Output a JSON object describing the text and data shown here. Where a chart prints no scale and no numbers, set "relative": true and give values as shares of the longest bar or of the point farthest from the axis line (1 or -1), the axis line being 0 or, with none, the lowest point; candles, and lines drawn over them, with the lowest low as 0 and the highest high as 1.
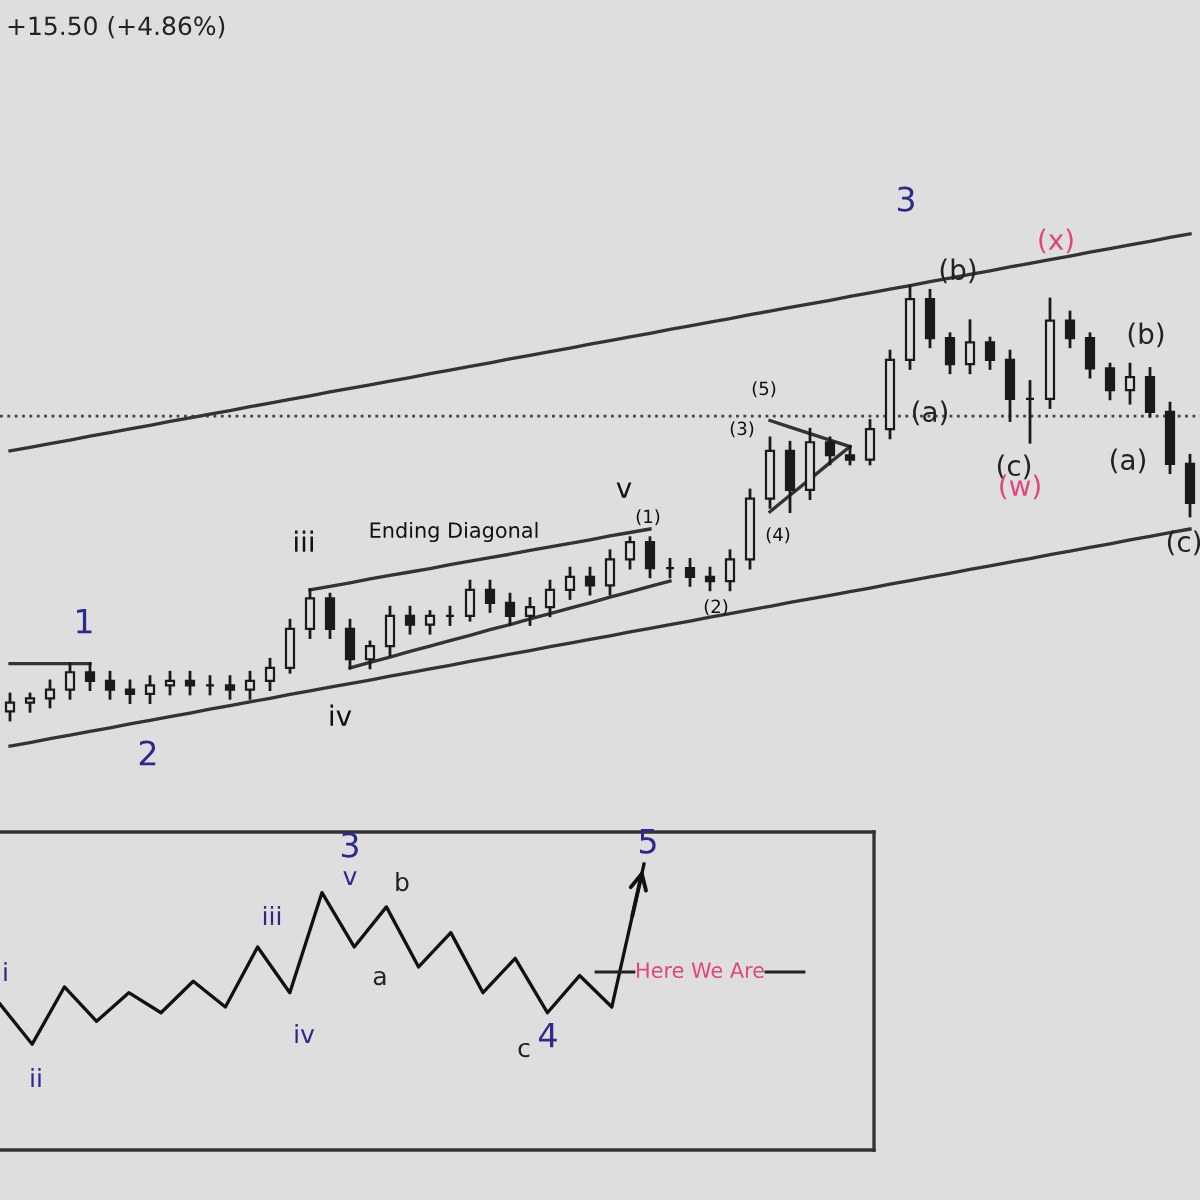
{
  "chart_data": [
    {
      "type": "candlestick",
      "relative": true,
      "tick_labels": false,
      "categories": [
        null,
        null,
        null,
        null,
        null,
        null,
        null,
        null,
        null,
        null,
        null,
        null,
        null,
        null,
        null,
        null,
        null,
        null,
        null,
        null,
        null,
        null,
        null,
        null,
        null,
        null,
        null,
        null,
        null,
        null,
        null,
        null,
        null,
        null,
        null,
        null,
        null,
        null,
        null,
        null,
        null,
        null,
        null,
        null,
        null,
        null,
        null,
        null,
        null,
        null,
        null,
        null,
        null,
        null,
        null,
        null,
        null,
        null,
        null,
        null
      ],
      "ohlc": [
        [
          0.02,
          0.06,
          0,
          0.04
        ],
        [
          0.04,
          0.06,
          0.02,
          0.05
        ],
        [
          0.05,
          0.09,
          0.03,
          0.07
        ],
        [
          0.07,
          0.13,
          0.05,
          0.11
        ],
        [
          0.11,
          0.13,
          0.07,
          0.09
        ],
        [
          0.09,
          0.11,
          0.05,
          0.07
        ],
        [
          0.07,
          0.09,
          0.04,
          0.06
        ],
        [
          0.06,
          0.1,
          0.04,
          0.08
        ],
        [
          0.08,
          0.11,
          0.06,
          0.09
        ],
        [
          0.09,
          0.11,
          0.06,
          0.08
        ],
        [
          0.08,
          0.1,
          0.06,
          0.08
        ],
        [
          0.08,
          0.1,
          0.05,
          0.07
        ],
        [
          0.07,
          0.11,
          0.05,
          0.09
        ],
        [
          0.09,
          0.14,
          0.07,
          0.12
        ],
        [
          0.12,
          0.23,
          0.11,
          0.21
        ],
        [
          0.21,
          0.3,
          0.19,
          0.28
        ],
        [
          0.28,
          0.29,
          0.19,
          0.21
        ],
        [
          0.21,
          0.23,
          0.12,
          0.14
        ],
        [
          0.14,
          0.18,
          0.12,
          0.17
        ],
        [
          0.17,
          0.26,
          0.15,
          0.24
        ],
        [
          0.24,
          0.26,
          0.2,
          0.22
        ],
        [
          0.22,
          0.25,
          0.2,
          0.24
        ],
        [
          0.24,
          0.26,
          0.22,
          0.24
        ],
        [
          0.24,
          0.32,
          0.23,
          0.3
        ],
        [
          0.3,
          0.32,
          0.25,
          0.27
        ],
        [
          0.27,
          0.29,
          0.22,
          0.24
        ],
        [
          0.24,
          0.28,
          0.22,
          0.26
        ],
        [
          0.26,
          0.32,
          0.24,
          0.3
        ],
        [
          0.3,
          0.35,
          0.28,
          0.33
        ],
        [
          0.33,
          0.35,
          0.29,
          0.31
        ],
        [
          0.31,
          0.39,
          0.29,
          0.37
        ],
        [
          0.37,
          0.42,
          0.35,
          0.41
        ],
        [
          0.41,
          0.42,
          0.33,
          0.35
        ],
        [
          0.35,
          0.37,
          0.33,
          0.35
        ],
        [
          0.35,
          0.37,
          0.31,
          0.33
        ],
        [
          0.33,
          0.35,
          0.3,
          0.32
        ],
        [
          0.32,
          0.39,
          0.3,
          0.37
        ],
        [
          0.37,
          0.53,
          0.35,
          0.51
        ],
        [
          0.51,
          0.65,
          0.49,
          0.62
        ],
        [
          0.62,
          0.64,
          0.48,
          0.53
        ],
        [
          0.53,
          0.67,
          0.51,
          0.64
        ],
        [
          0.64,
          0.65,
          0.59,
          0.61
        ],
        [
          0.61,
          0.63,
          0.59,
          0.6
        ],
        [
          0.6,
          0.69,
          0.59,
          0.67
        ],
        [
          0.67,
          0.85,
          0.65,
          0.83
        ],
        [
          0.83,
          1,
          0.81,
          0.97
        ],
        [
          0.97,
          0.99,
          0.86,
          0.88
        ],
        [
          0.88,
          0.89,
          0.8,
          0.82
        ],
        [
          0.82,
          0.92,
          0.8,
          0.87
        ],
        [
          0.87,
          0.88,
          0.81,
          0.83
        ],
        [
          0.83,
          0.85,
          0.69,
          0.74
        ],
        [
          0.74,
          0.78,
          0.64,
          0.74
        ],
        [
          0.74,
          0.97,
          0.72,
          0.92
        ],
        [
          0.92,
          0.94,
          0.86,
          0.88
        ],
        [
          0.88,
          0.89,
          0.79,
          0.81
        ],
        [
          0.81,
          0.82,
          0.74,
          0.76
        ],
        [
          0.76,
          0.82,
          0.73,
          0.79
        ],
        [
          0.79,
          0.81,
          0.7,
          0.71
        ],
        [
          0.71,
          0.73,
          0.57,
          0.59
        ],
        [
          0.59,
          0.61,
          0.47,
          0.5
        ]
      ],
      "color": "#1a1a1a",
      "series": [
        {
          "type": "line",
          "color": "#333333",
          "values": [
            0.62,
            0.628,
            0.637,
            0.645,
            0.654,
            0.662,
            0.671,
            0.679,
            0.688,
            0.696,
            0.705,
            0.713,
            0.722,
            0.73,
            0.739,
            0.747,
            0.756,
            0.764,
            0.772,
            0.781,
            0.789,
            0.798,
            0.806,
            0.815,
            0.823,
            0.832,
            0.84,
            0.849,
            0.857,
            0.866,
            0.874,
            0.883,
            0.891,
            0.9,
            0.908,
            0.917,
            0.925,
            0.934,
            0.942,
            0.951,
            0.959,
            0.967,
            0.976,
            0.984,
            0.993,
            1.001,
            1.01,
            1.018,
            1.027,
            1.035,
            1.044,
            1.052,
            1.061,
            1.069,
            1.078,
            1.086,
            1.095,
            1.103,
            1.112,
            1.12
          ]
        },
        {
          "type": "line",
          "color": "#333333",
          "values": [
            -0.06,
            -0.052,
            -0.043,
            -0.035,
            -0.026,
            -0.018,
            -0.009,
            -0.001,
            0.008,
            0.016,
            0.025,
            0.033,
            0.042,
            0.05,
            0.059,
            0.067,
            0.076,
            0.084,
            0.092,
            0.101,
            0.109,
            0.118,
            0.126,
            0.135,
            0.143,
            0.152,
            0.16,
            0.169,
            0.177,
            0.186,
            0.194,
            0.203,
            0.211,
            0.22,
            0.228,
            0.237,
            0.245,
            0.254,
            0.262,
            0.271,
            0.279,
            0.287,
            0.296,
            0.304,
            0.313,
            0.321,
            0.33,
            0.338,
            0.347,
            0.355,
            0.364,
            0.372,
            0.381,
            0.389,
            0.398,
            0.406,
            0.415,
            0.423,
            0.432,
            0.44
          ]
        },
        {
          "type": "line",
          "color": "#333333",
          "values": [
            0.13,
            0.13,
            0.13,
            0.13,
            0.13,
            null,
            null,
            null,
            null,
            null,
            null,
            null,
            null,
            null,
            null,
            null,
            null,
            null,
            null,
            null,
            null,
            null,
            null,
            null,
            null,
            null,
            null,
            null,
            null,
            null,
            null,
            null,
            null,
            null,
            null,
            null,
            null,
            null,
            null,
            null,
            null,
            null,
            null,
            null,
            null,
            null,
            null,
            null,
            null,
            null,
            null,
            null,
            null,
            null,
            null,
            null,
            null,
            null,
            null,
            null
          ]
        },
        {
          "type": "line",
          "color": "#333333",
          "values": [
            null,
            null,
            null,
            null,
            null,
            null,
            null,
            null,
            null,
            null,
            null,
            null,
            null,
            null,
            null,
            0.3,
            0.308,
            0.316,
            0.325,
            0.333,
            0.341,
            0.349,
            0.358,
            0.366,
            0.374,
            0.382,
            0.391,
            0.399,
            0.407,
            0.415,
            0.424,
            0.432,
            0.44,
            null,
            null,
            null,
            null,
            null,
            null,
            null,
            null,
            null,
            null,
            null,
            null,
            null,
            null,
            null,
            null,
            null,
            null,
            null,
            null,
            null,
            null,
            null,
            null,
            null,
            null,
            null
          ]
        },
        {
          "type": "line",
          "color": "#333333",
          "values": [
            null,
            null,
            null,
            null,
            null,
            null,
            null,
            null,
            null,
            null,
            null,
            null,
            null,
            null,
            null,
            null,
            null,
            0.12,
            0.133,
            0.145,
            0.158,
            0.17,
            0.183,
            0.195,
            0.208,
            0.22,
            0.233,
            0.245,
            0.258,
            0.27,
            0.283,
            0.295,
            0.308,
            0.32,
            null,
            null,
            null,
            null,
            null,
            null,
            null,
            null,
            null,
            null,
            null,
            null,
            null,
            null,
            null,
            null,
            null,
            null,
            null,
            null,
            null,
            null,
            null,
            null,
            null,
            null
          ]
        },
        {
          "type": "line",
          "color": "#333333",
          "values": [
            null,
            null,
            null,
            null,
            null,
            null,
            null,
            null,
            null,
            null,
            null,
            null,
            null,
            null,
            null,
            null,
            null,
            null,
            null,
            null,
            null,
            null,
            null,
            null,
            null,
            null,
            null,
            null,
            null,
            null,
            null,
            null,
            null,
            null,
            null,
            null,
            null,
            null,
            0.69,
            0.675,
            0.66,
            0.645,
            0.63,
            null,
            null,
            null,
            null,
            null,
            null,
            null,
            null,
            null,
            null,
            null,
            null,
            null,
            null,
            null,
            null,
            null
          ]
        },
        {
          "type": "line",
          "color": "#333333",
          "values": [
            null,
            null,
            null,
            null,
            null,
            null,
            null,
            null,
            null,
            null,
            null,
            null,
            null,
            null,
            null,
            null,
            null,
            null,
            null,
            null,
            null,
            null,
            null,
            null,
            null,
            null,
            null,
            null,
            null,
            null,
            null,
            null,
            null,
            null,
            null,
            null,
            null,
            null,
            0.48,
            0.518,
            0.555,
            0.593,
            0.63,
            null,
            null,
            null,
            null,
            null,
            null,
            null,
            null,
            null,
            null,
            null,
            null,
            null,
            null,
            null,
            null,
            null
          ]
        }
      ],
      "ref_lines": [
        {
          "axis": "y",
          "value": 0.7,
          "color": "#444444",
          "line_style": "dotted"
        }
      ],
      "annotations": [
        "+15.50 (+4.86%)",
        "1",
        "2",
        "iii",
        "iv",
        "Ending Diagonal",
        "v",
        "(1)",
        "(2)",
        "(3)",
        "(4)",
        "(5)",
        "3",
        "(b)",
        "(a)",
        "(x)",
        "(c)",
        "(w)",
        "(b)",
        "(a)",
        "(c)"
      ]
    },
    {
      "type": "line",
      "relative": true,
      "tick_labels": false,
      "marker": "none",
      "line_style": "solid",
      "categories": [
        null,
        null,
        null,
        null,
        null,
        null,
        null,
        null,
        null,
        null,
        null,
        null,
        null,
        null,
        null,
        null,
        null,
        null,
        null,
        null,
        null
      ],
      "series": [
        {
          "color": "#111111",
          "values": [
            0.51,
            0.37,
            0.57,
            0.45,
            0.55,
            0.48,
            0.59,
            0.5,
            0.71,
            0.55,
            0.9,
            0.71,
            0.85,
            0.64,
            0.76,
            0.55,
            0.67,
            0.48,
            0.61,
            0.5,
            1
          ]
        }
      ],
      "annotations": [
        "i",
        "ii",
        "iii",
        "iv",
        "3",
        "v",
        "b",
        "a",
        "c",
        "4",
        "5",
        "Here We Are"
      ]
    }
  ]
}
